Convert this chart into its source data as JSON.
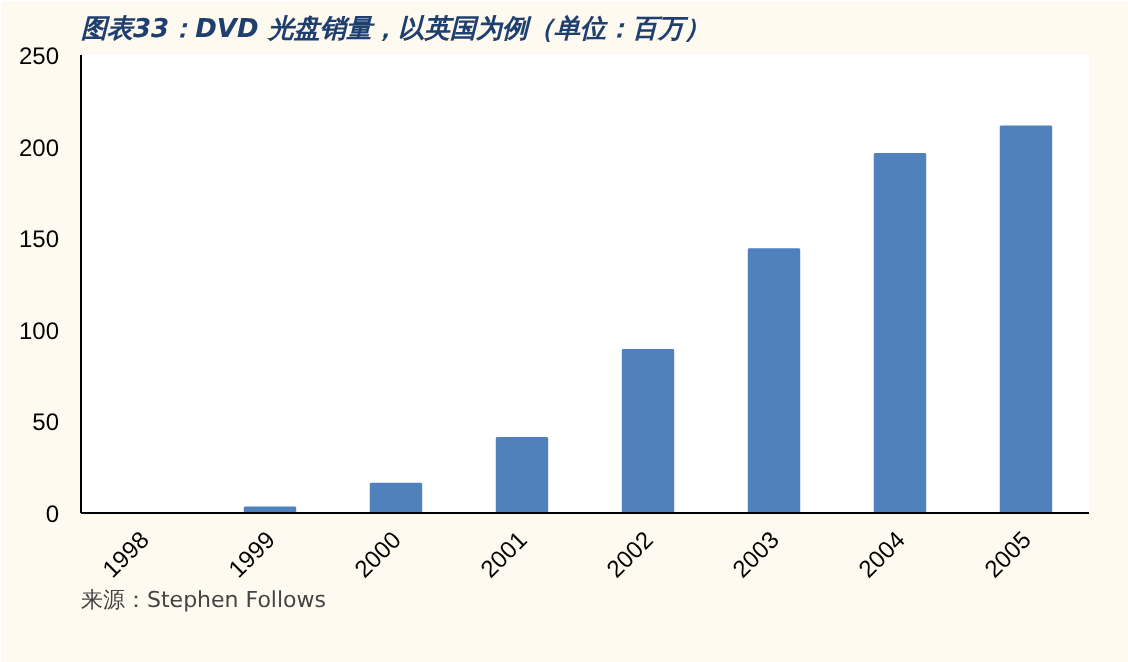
{
  "chart_data": {
    "type": "bar",
    "title": "图表33：DVD 光盘销量，以英国为例（单位：百万）",
    "categories": [
      "1998",
      "1999",
      "2000",
      "2001",
      "2002",
      "2003",
      "2004",
      "2005"
    ],
    "values": [
      0,
      3,
      16,
      41,
      89,
      144,
      196,
      211
    ],
    "color": "#4f81bd",
    "ylim": [
      0,
      250
    ],
    "yticks": [
      0,
      50,
      100,
      150,
      200,
      250
    ],
    "grid": false,
    "annotations": [
      "来源：Stephen Follows"
    ]
  }
}
